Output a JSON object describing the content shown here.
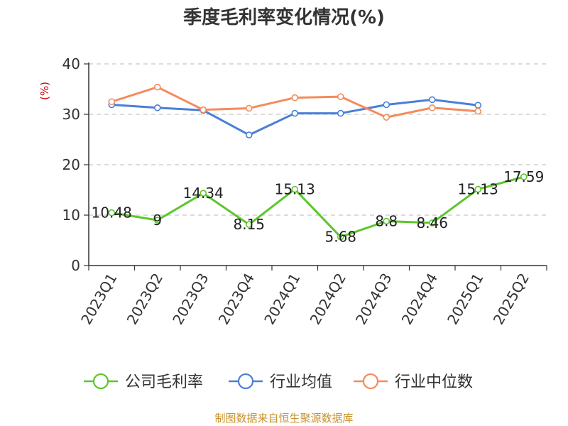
{
  "chart_data": {
    "type": "line",
    "title": "季度毛利率变化情况(%)",
    "ylabel": "(%)",
    "ylim": [
      0,
      40
    ],
    "yticks": [
      0,
      10,
      20,
      30,
      40
    ],
    "grid": true,
    "legend_position": "bottom",
    "categories": [
      "2023Q1",
      "2023Q2",
      "2023Q3",
      "2023Q4",
      "2024Q1",
      "2024Q2",
      "2024Q3",
      "2024Q4",
      "2025Q1",
      "2025Q2"
    ],
    "series": [
      {
        "name": "公司毛利率",
        "color": "#5cc62c",
        "values": [
          10.48,
          9,
          14.34,
          8.15,
          15.13,
          5.68,
          8.8,
          8.46,
          15.13,
          17.59
        ],
        "labels": [
          "10.48",
          "9",
          "14.34",
          "8.15",
          "15.13",
          "5.68",
          "8.8",
          "8.46",
          "15.13",
          "17.59"
        ]
      },
      {
        "name": "行业均值",
        "color": "#4a7fd8",
        "values": [
          31.9,
          31.3,
          30.8,
          25.9,
          30.2,
          30.2,
          31.9,
          32.9,
          31.8,
          null
        ]
      },
      {
        "name": "行业中位数",
        "color": "#f48b5c",
        "values": [
          32.5,
          35.4,
          30.9,
          31.2,
          33.3,
          33.5,
          29.4,
          31.3,
          30.6,
          null
        ]
      }
    ],
    "source": "制图数据来自恒生聚源数据库"
  }
}
